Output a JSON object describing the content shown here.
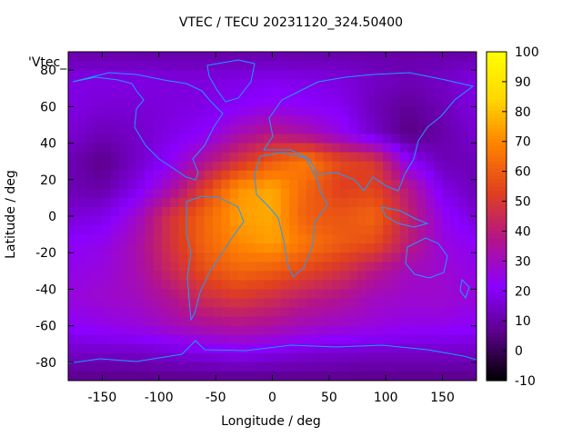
{
  "chart_data": {
    "type": "heatmap",
    "title": "VTEC / TECU 20231120_324.50400",
    "xlabel": "Longitude / deg",
    "ylabel": "Latitude / deg",
    "series_key": "'Vtec_",
    "xlim": [
      -180,
      180
    ],
    "ylim": [
      -90,
      90
    ],
    "x_ticks": [
      -150,
      -100,
      -50,
      0,
      50,
      100,
      150
    ],
    "y_ticks": [
      -80,
      -60,
      -40,
      -20,
      0,
      20,
      40,
      60,
      80
    ],
    "colorbar": {
      "min": -10,
      "max": 100,
      "ticks": [
        -10,
        0,
        10,
        20,
        30,
        40,
        50,
        60,
        70,
        80,
        90,
        100
      ]
    },
    "field": {
      "lon": [
        -180,
        -150,
        -120,
        -90,
        -60,
        -30,
        0,
        30,
        60,
        90,
        120,
        150,
        180
      ],
      "lat": [
        90,
        75,
        60,
        45,
        30,
        15,
        0,
        -15,
        -30,
        -45,
        -60,
        -75,
        -90
      ],
      "values": [
        [
          10,
          10,
          10,
          10,
          10,
          10,
          10,
          10,
          10,
          10,
          10,
          10,
          10
        ],
        [
          18,
          18,
          18,
          17,
          17,
          18,
          19,
          18,
          17,
          14,
          12,
          14,
          18
        ],
        [
          18,
          16,
          16,
          17,
          18,
          21,
          24,
          22,
          20,
          12,
          8,
          12,
          18
        ],
        [
          16,
          12,
          14,
          18,
          22,
          32,
          38,
          33,
          25,
          14,
          5,
          10,
          16
        ],
        [
          12,
          6,
          14,
          22,
          35,
          48,
          60,
          68,
          55,
          50,
          22,
          12,
          12
        ],
        [
          12,
          10,
          18,
          32,
          52,
          72,
          76,
          62,
          52,
          54,
          38,
          18,
          12
        ],
        [
          16,
          18,
          28,
          48,
          62,
          74,
          76,
          60,
          58,
          62,
          42,
          24,
          16
        ],
        [
          22,
          24,
          32,
          48,
          62,
          70,
          74,
          66,
          60,
          56,
          40,
          26,
          22
        ],
        [
          24,
          26,
          32,
          44,
          56,
          62,
          60,
          54,
          48,
          38,
          30,
          28,
          24
        ],
        [
          26,
          28,
          30,
          36,
          46,
          50,
          46,
          40,
          36,
          30,
          28,
          28,
          26
        ],
        [
          22,
          24,
          26,
          30,
          34,
          36,
          34,
          30,
          28,
          26,
          24,
          24,
          22
        ],
        [
          14,
          14,
          14,
          16,
          18,
          20,
          18,
          16,
          15,
          14,
          14,
          14,
          14
        ],
        [
          6,
          6,
          6,
          6,
          6,
          6,
          6,
          6,
          6,
          6,
          6,
          6,
          6
        ]
      ]
    },
    "palette": [
      "#000000",
      "#5a0087",
      "#8b00ff",
      "#b3148a",
      "#e0401e",
      "#ff8000",
      "#ffd800",
      "#ffff00"
    ]
  }
}
